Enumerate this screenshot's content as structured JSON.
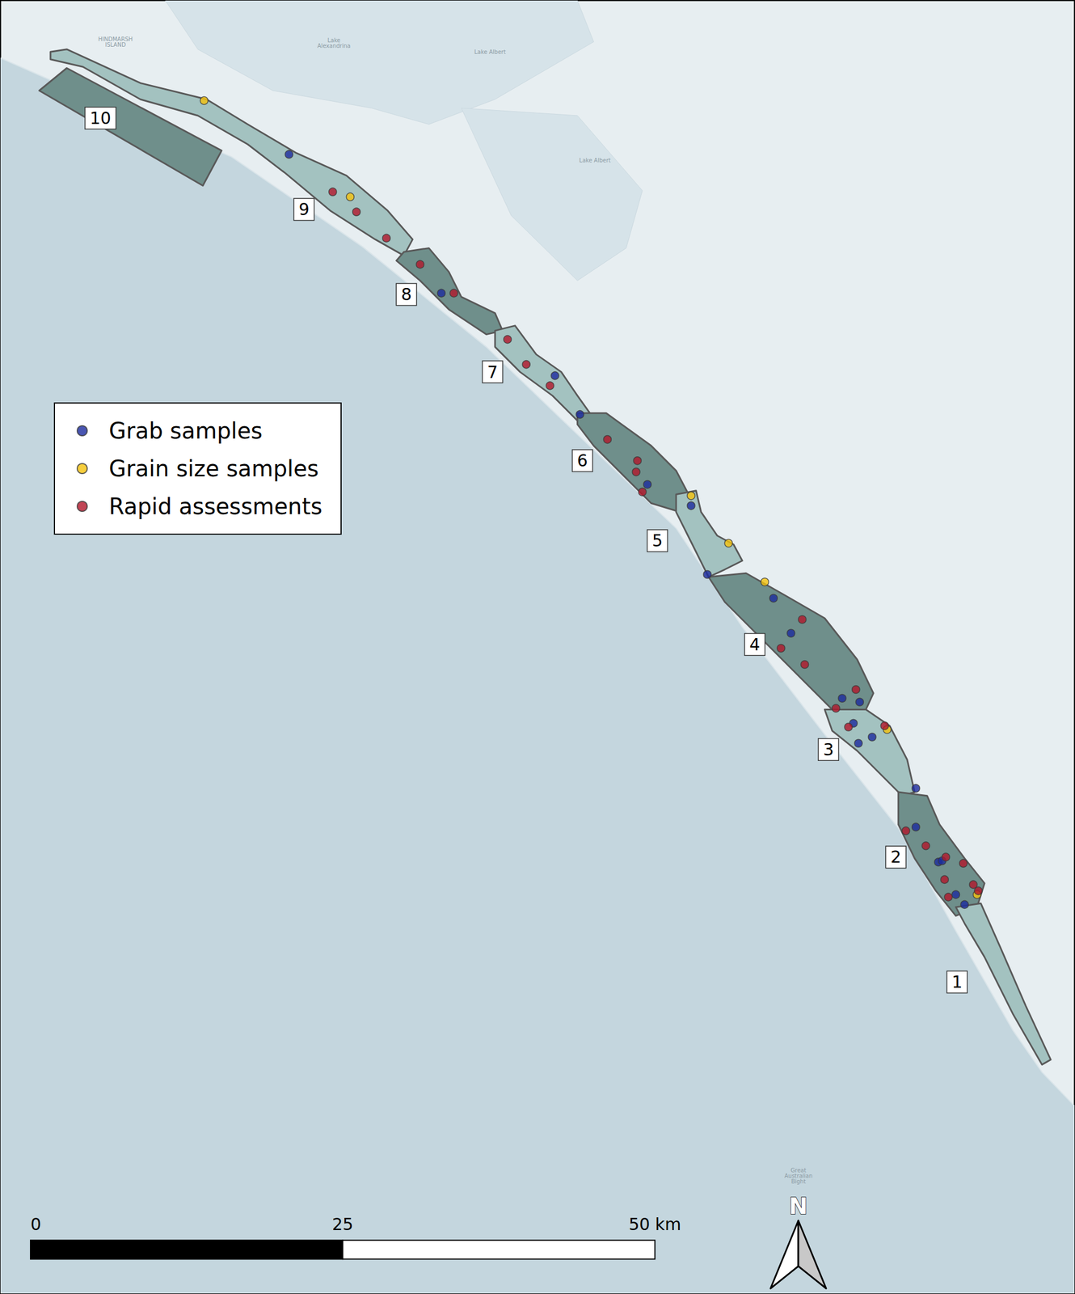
{
  "chart_data": {
    "type": "map",
    "xlim": [
      0,
      86
    ],
    "ylim": [
      0,
      103.4
    ],
    "tick_labels": false,
    "grid": false,
    "legend": "left",
    "coastline": [
      [
        0,
        98.8
      ],
      [
        6.6,
        95.9
      ],
      [
        18.5,
        90.9
      ],
      [
        29.0,
        83.7
      ],
      [
        38.9,
        75.7
      ],
      [
        46.2,
        68.7
      ],
      [
        54.1,
        61.2
      ],
      [
        59.4,
        53.3
      ],
      [
        66.0,
        44.7
      ],
      [
        71.9,
        37.2
      ],
      [
        76.5,
        29.0
      ],
      [
        81.1,
        21.0
      ],
      [
        83.4,
        17.7
      ],
      [
        86.0,
        15.0
      ]
    ],
    "lakes": [
      {
        "polygon": [
          [
            13.2,
            103.4
          ],
          [
            46.2,
            103.4
          ],
          [
            47.5,
            100.1
          ],
          [
            39.6,
            95.5
          ],
          [
            34.3,
            93.5
          ],
          [
            29.7,
            94.8
          ],
          [
            21.8,
            96.2
          ],
          [
            15.8,
            99.5
          ]
        ]
      },
      {
        "polygon": [
          [
            36.9,
            94.8
          ],
          [
            46.2,
            94.2
          ],
          [
            51.4,
            88.2
          ],
          [
            50.1,
            83.6
          ],
          [
            46.2,
            81.0
          ],
          [
            40.9,
            86.2
          ]
        ]
      }
    ],
    "places": [
      {
        "text": "HINDMARSH\nISLAND",
        "at": [
          9.2,
          100.1
        ]
      },
      {
        "text": "Lake\nAlexandrina",
        "at": [
          26.7,
          100.0
        ]
      },
      {
        "text": "Lake Albert",
        "at": [
          39.2,
          99.3
        ]
      },
      {
        "text": "Lake Albert",
        "at": [
          47.6,
          90.6
        ]
      },
      {
        "text": "Great\nAustralian\nBight",
        "at": [
          63.9,
          9.4
        ]
      }
    ],
    "zones": [
      {
        "name": "10",
        "color": "#6f8f8b",
        "label_at": [
          8.0,
          94.0
        ],
        "polygon": [
          [
            3.1,
            96.2
          ],
          [
            5.3,
            98.0
          ],
          [
            17.7,
            91.4
          ],
          [
            16.2,
            88.6
          ]
        ]
      },
      {
        "name": "9",
        "color": "#a3c2c0",
        "label_at": [
          24.3,
          86.7
        ],
        "polygon": [
          [
            4.0,
            99.3
          ],
          [
            5.3,
            99.5
          ],
          [
            11.2,
            96.8
          ],
          [
            16.5,
            95.5
          ],
          [
            19.8,
            93.5
          ],
          [
            23.7,
            91.2
          ],
          [
            27.7,
            89.4
          ],
          [
            31.0,
            86.6
          ],
          [
            33.0,
            84.3
          ],
          [
            32.3,
            83.0
          ],
          [
            30.0,
            84.3
          ],
          [
            26.4,
            86.6
          ],
          [
            22.8,
            89.6
          ],
          [
            19.8,
            91.9
          ],
          [
            15.8,
            94.2
          ],
          [
            11.2,
            95.5
          ],
          [
            6.6,
            98.1
          ],
          [
            4.0,
            98.7
          ]
        ]
      },
      {
        "name": "8",
        "color": "#6f8f8b",
        "label_at": [
          32.5,
          79.9
        ],
        "polygon": [
          [
            32.3,
            83.3
          ],
          [
            34.3,
            83.6
          ],
          [
            35.9,
            81.7
          ],
          [
            36.9,
            79.7
          ],
          [
            39.6,
            78.4
          ],
          [
            40.2,
            77.0
          ],
          [
            38.9,
            76.7
          ],
          [
            35.9,
            78.7
          ],
          [
            33.6,
            81.0
          ],
          [
            31.7,
            82.6
          ]
        ]
      },
      {
        "name": "7",
        "color": "#a3c2c0",
        "label_at": [
          39.4,
          73.7
        ],
        "polygon": [
          [
            39.6,
            77.0
          ],
          [
            41.2,
            77.4
          ],
          [
            42.9,
            75.1
          ],
          [
            44.9,
            73.7
          ],
          [
            46.2,
            71.8
          ],
          [
            47.2,
            70.4
          ],
          [
            46.2,
            69.8
          ],
          [
            44.2,
            71.8
          ],
          [
            41.6,
            73.7
          ],
          [
            39.6,
            75.7
          ]
        ]
      },
      {
        "name": "6",
        "color": "#6f8f8b",
        "label_at": [
          46.6,
          66.6
        ],
        "polygon": [
          [
            46.2,
            70.4
          ],
          [
            48.5,
            70.4
          ],
          [
            52.1,
            67.8
          ],
          [
            54.1,
            65.8
          ],
          [
            55.1,
            63.9
          ],
          [
            54.4,
            62.5
          ],
          [
            52.1,
            63.2
          ],
          [
            50.1,
            65.2
          ],
          [
            47.5,
            67.8
          ],
          [
            46.2,
            69.5
          ]
        ]
      },
      {
        "name": "5",
        "color": "#a3c2c0",
        "label_at": [
          52.6,
          60.2
        ],
        "polygon": [
          [
            54.1,
            63.9
          ],
          [
            55.7,
            64.2
          ],
          [
            56.1,
            62.5
          ],
          [
            57.4,
            60.6
          ],
          [
            58.7,
            59.9
          ],
          [
            59.4,
            58.6
          ],
          [
            58.0,
            57.9
          ],
          [
            56.7,
            57.3
          ],
          [
            55.4,
            59.9
          ],
          [
            54.1,
            62.5
          ]
        ]
      },
      {
        "name": "4",
        "color": "#6f8f8b",
        "label_at": [
          60.4,
          51.9
        ],
        "polygon": [
          [
            56.7,
            57.3
          ],
          [
            59.7,
            57.6
          ],
          [
            62.7,
            55.9
          ],
          [
            66.0,
            54.0
          ],
          [
            68.6,
            50.7
          ],
          [
            69.9,
            48.0
          ],
          [
            69.3,
            46.7
          ],
          [
            66.6,
            46.7
          ],
          [
            63.3,
            50.0
          ],
          [
            60.7,
            52.6
          ],
          [
            58.0,
            55.3
          ]
        ]
      },
      {
        "name": "3",
        "color": "#a3c2c0",
        "label_at": [
          66.3,
          43.5
        ],
        "polygon": [
          [
            66.0,
            46.7
          ],
          [
            69.3,
            46.7
          ],
          [
            71.2,
            45.4
          ],
          [
            72.6,
            42.7
          ],
          [
            73.2,
            40.1
          ],
          [
            72.2,
            39.8
          ],
          [
            70.6,
            41.4
          ],
          [
            68.6,
            43.4
          ],
          [
            66.6,
            45.0
          ]
        ]
      },
      {
        "name": "2",
        "color": "#6f8f8b",
        "label_at": [
          71.7,
          34.9
        ],
        "polygon": [
          [
            71.9,
            40.1
          ],
          [
            74.2,
            39.8
          ],
          [
            75.2,
            37.5
          ],
          [
            77.2,
            34.8
          ],
          [
            78.8,
            32.8
          ],
          [
            78.2,
            30.9
          ],
          [
            76.5,
            30.2
          ],
          [
            74.9,
            32.2
          ],
          [
            73.2,
            34.8
          ],
          [
            71.9,
            37.5
          ]
        ]
      },
      {
        "name": "1",
        "color": "#a3c2c0",
        "label_at": [
          76.6,
          24.9
        ],
        "polygon": [
          [
            76.5,
            30.9
          ],
          [
            78.5,
            31.2
          ],
          [
            80.1,
            27.6
          ],
          [
            82.1,
            23.0
          ],
          [
            84.1,
            18.7
          ],
          [
            83.4,
            18.3
          ],
          [
            81.1,
            22.3
          ],
          [
            78.8,
            26.9
          ],
          [
            77.2,
            29.6
          ]
        ]
      }
    ],
    "series": [
      {
        "name": "Grab samples",
        "color": "#1b2a9e",
        "marker": "circle",
        "values": [
          [
            23.1,
            91.1
          ],
          [
            35.3,
            80.0
          ],
          [
            44.4,
            73.4
          ],
          [
            46.4,
            70.3
          ],
          [
            51.8,
            64.7
          ],
          [
            55.3,
            63.0
          ],
          [
            56.6,
            57.5
          ],
          [
            61.9,
            55.6
          ],
          [
            63.3,
            52.8
          ],
          [
            67.4,
            47.6
          ],
          [
            68.8,
            47.3
          ],
          [
            68.3,
            45.6
          ],
          [
            69.8,
            44.5
          ],
          [
            68.7,
            44.0
          ],
          [
            73.3,
            40.4
          ],
          [
            73.3,
            37.3
          ],
          [
            75.1,
            34.5
          ],
          [
            75.4,
            34.6
          ],
          [
            76.5,
            31.9
          ],
          [
            77.2,
            31.1
          ]
        ]
      },
      {
        "name": "Grain size samples",
        "color": "#f4c20d",
        "marker": "circle",
        "values": [
          [
            16.3,
            95.4
          ],
          [
            28.0,
            87.7
          ],
          [
            55.3,
            63.8
          ],
          [
            58.3,
            60.0
          ],
          [
            61.2,
            56.9
          ],
          [
            71.0,
            45.1
          ],
          [
            78.2,
            31.9
          ]
        ]
      },
      {
        "name": "Rapid assessments",
        "color": "#b2162b",
        "marker": "circle",
        "values": [
          [
            26.6,
            88.1
          ],
          [
            28.5,
            86.5
          ],
          [
            30.9,
            84.4
          ],
          [
            33.6,
            82.3
          ],
          [
            36.3,
            80.0
          ],
          [
            40.6,
            76.3
          ],
          [
            42.1,
            74.3
          ],
          [
            44.0,
            72.6
          ],
          [
            48.6,
            68.3
          ],
          [
            51.0,
            66.6
          ],
          [
            50.9,
            65.7
          ],
          [
            51.4,
            64.1
          ],
          [
            64.2,
            53.9
          ],
          [
            62.5,
            51.6
          ],
          [
            64.4,
            50.3
          ],
          [
            68.5,
            48.3
          ],
          [
            66.9,
            46.8
          ],
          [
            67.9,
            45.3
          ],
          [
            70.8,
            45.4
          ],
          [
            72.5,
            37.0
          ],
          [
            74.1,
            35.8
          ],
          [
            75.7,
            34.9
          ],
          [
            77.1,
            34.4
          ],
          [
            75.6,
            33.1
          ],
          [
            77.9,
            32.7
          ],
          [
            78.3,
            32.2
          ],
          [
            75.9,
            31.7
          ]
        ]
      }
    ],
    "scale_bar": {
      "ticks": [
        0,
        25,
        {
          "value": 50,
          "label": "50 km"
        }
      ]
    },
    "north_label": "N"
  }
}
